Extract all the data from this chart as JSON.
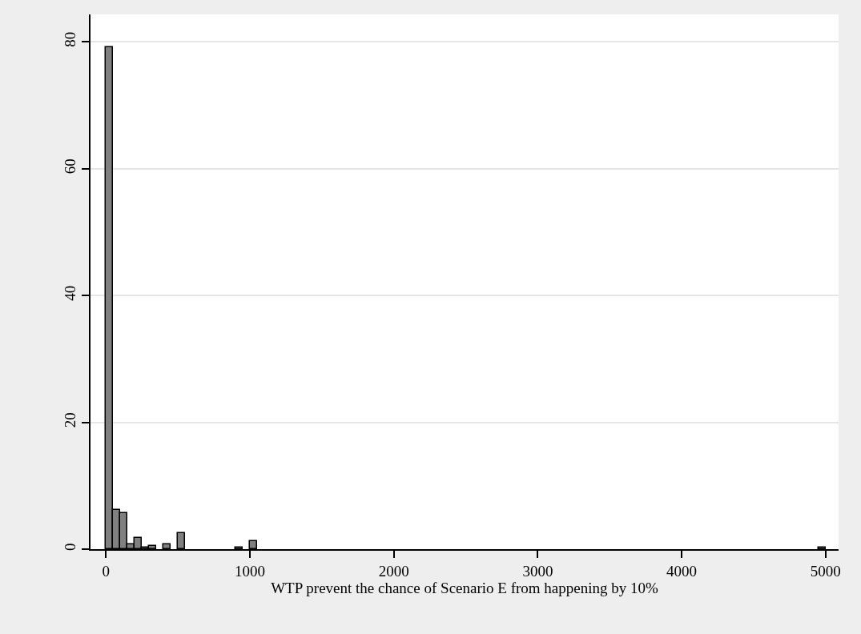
{
  "chart_data": {
    "type": "histogram",
    "xlabel": "WTP prevent the chance of Scenario E from happening by 10%",
    "color": "#808080",
    "bins": [
      0,
      50,
      100,
      150,
      200,
      250,
      300,
      350,
      400,
      450,
      500,
      550,
      600,
      650,
      700,
      750,
      800,
      850,
      900,
      950,
      1000,
      1050,
      1100,
      1150,
      1200,
      1250,
      1300,
      1350,
      1400,
      1450,
      1500,
      1550,
      1600,
      1650,
      1700,
      1750,
      1800,
      1850,
      1900,
      1950,
      2000,
      2050,
      2100,
      2150,
      2200,
      2250,
      2300,
      2350,
      2400,
      2450,
      2500,
      2550,
      2600,
      2650,
      2700,
      2750,
      2800,
      2850,
      2900,
      2950,
      3000,
      3050,
      3100,
      3150,
      3200,
      3250,
      3300,
      3350,
      3400,
      3450,
      3500,
      3550,
      3600,
      3650,
      3700,
      3750,
      3800,
      3850,
      3900,
      3950,
      4000,
      4050,
      4100,
      4150,
      4200,
      4250,
      4300,
      4350,
      4400,
      4450,
      4500,
      4550,
      4600,
      4650,
      4700,
      4750,
      4800,
      4850,
      4900,
      4950,
      5000
    ],
    "values": [
      79.1,
      6.2,
      5.7,
      0.8,
      1.8,
      0.3,
      0.5,
      0,
      0.8,
      0,
      2.5,
      0,
      0,
      0,
      0,
      0,
      0,
      0,
      0.3,
      0,
      1.3,
      0,
      0,
      0,
      0,
      0,
      0,
      0,
      0,
      0,
      0,
      0,
      0,
      0,
      0,
      0,
      0,
      0,
      0,
      0,
      0,
      0,
      0,
      0,
      0,
      0,
      0,
      0,
      0,
      0,
      0,
      0,
      0,
      0,
      0,
      0,
      0,
      0,
      0,
      0,
      0,
      0,
      0,
      0,
      0,
      0,
      0,
      0,
      0,
      0,
      0,
      0,
      0,
      0,
      0,
      0,
      0,
      0,
      0,
      0,
      0,
      0,
      0,
      0,
      0,
      0,
      0,
      0,
      0,
      0,
      0,
      0,
      0,
      0,
      0,
      0,
      0,
      0,
      0,
      0.3
    ],
    "xlim": [
      -107,
      5090
    ],
    "xticks": [
      0,
      1000,
      2000,
      3000,
      4000,
      5000
    ],
    "ylim": [
      0,
      84.3
    ],
    "yticks": [
      0,
      20,
      40,
      60,
      80
    ],
    "grid": "y"
  }
}
